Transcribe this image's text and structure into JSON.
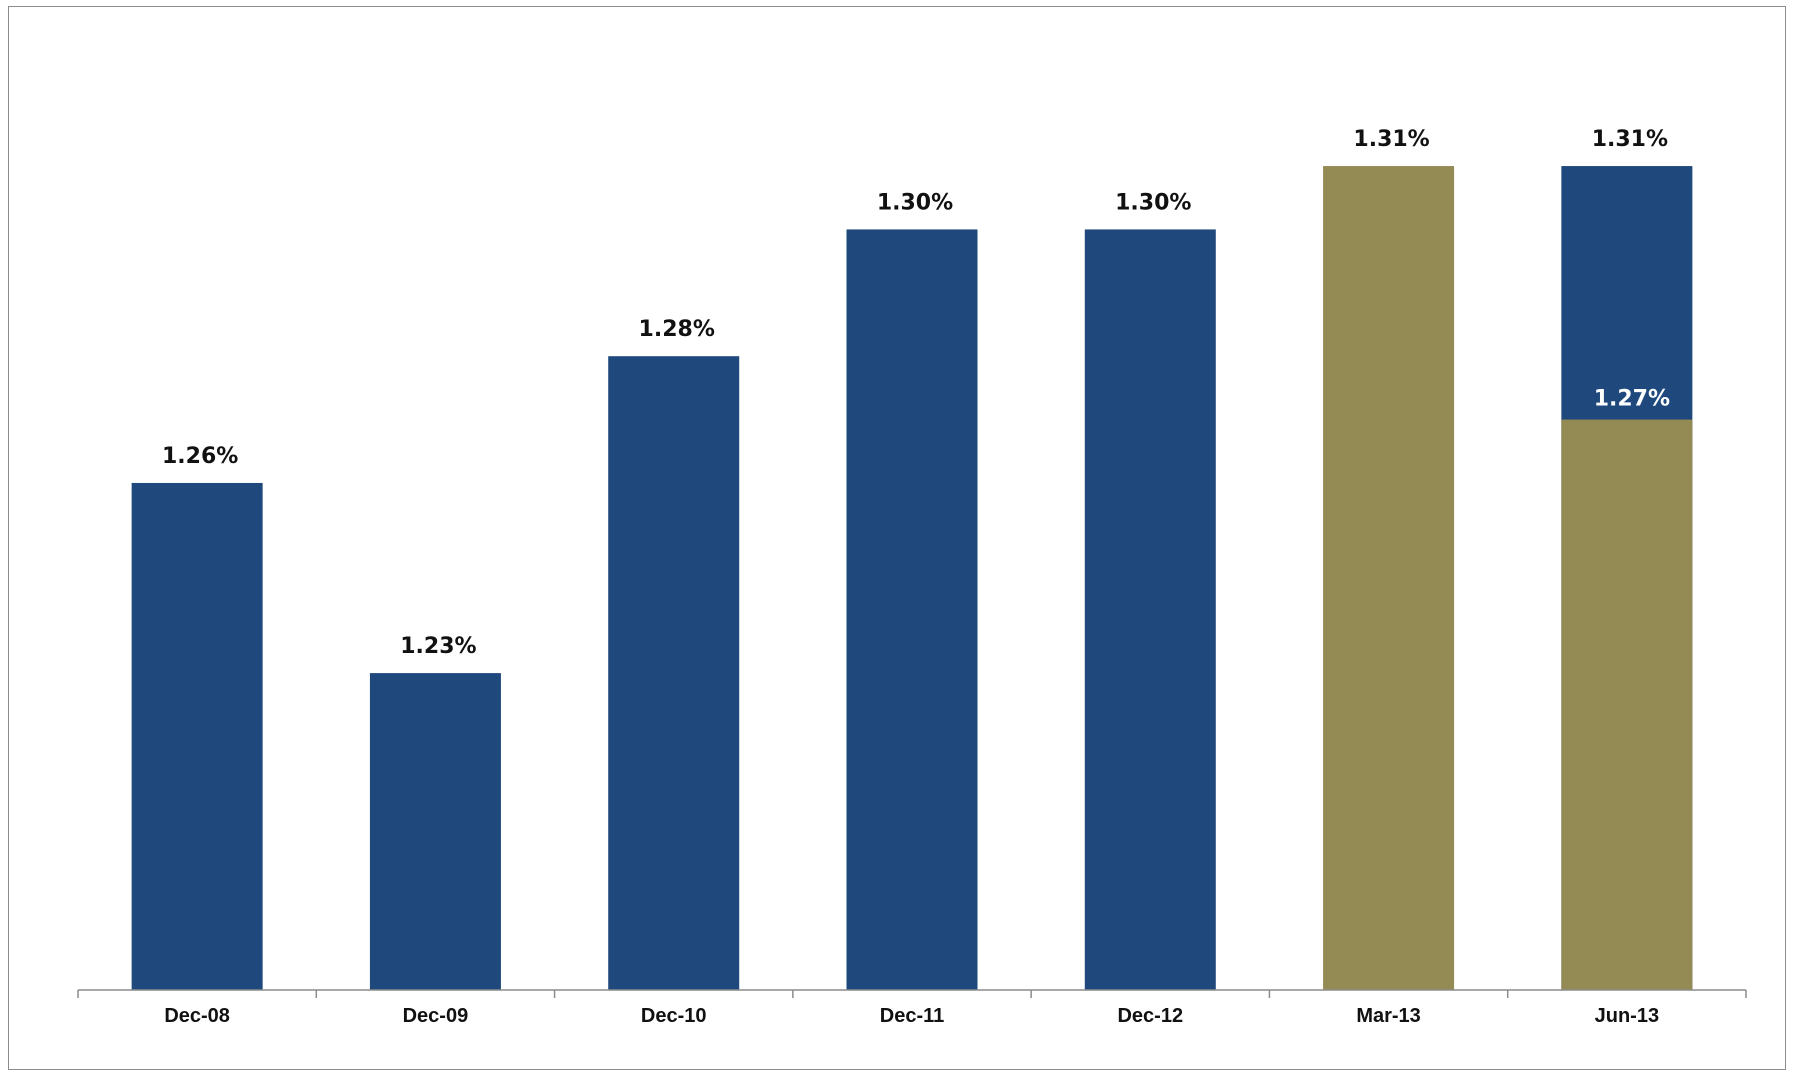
{
  "chart_data": {
    "type": "bar",
    "title": "",
    "xlabel": "",
    "ylabel": "",
    "grid": false,
    "categories": [
      "Dec-08",
      "Dec-09",
      "Dec-10",
      "Dec-11",
      "Dec-12",
      "Mar-13",
      "Jun-13"
    ],
    "ylim": [
      1.18,
      1.322
    ],
    "bars": [
      {
        "category": "Dec-08",
        "value": 1.26,
        "label": "1.26%",
        "color": "#1f497d"
      },
      {
        "category": "Dec-09",
        "value": 1.23,
        "label": "1.23%",
        "color": "#1f497d"
      },
      {
        "category": "Dec-10",
        "value": 1.28,
        "label": "1.28%",
        "color": "#1f497d"
      },
      {
        "category": "Dec-11",
        "value": 1.3,
        "label": "1.30%",
        "color": "#1f497d"
      },
      {
        "category": "Dec-12",
        "value": 1.3,
        "label": "1.30%",
        "color": "#1f497d"
      },
      {
        "category": "Mar-13",
        "value": 1.31,
        "label": "1.31%",
        "color": "#948a54"
      },
      {
        "category": "Jun-13",
        "value": 1.31,
        "label": "1.31%",
        "color": "#1f497d",
        "inner": {
          "value": 1.27,
          "label": "1.27%",
          "color": "#948a54"
        }
      }
    ],
    "colors": {
      "primary": "#1f497d",
      "secondary": "#948a54",
      "axis": "#8c8c8c"
    }
  }
}
